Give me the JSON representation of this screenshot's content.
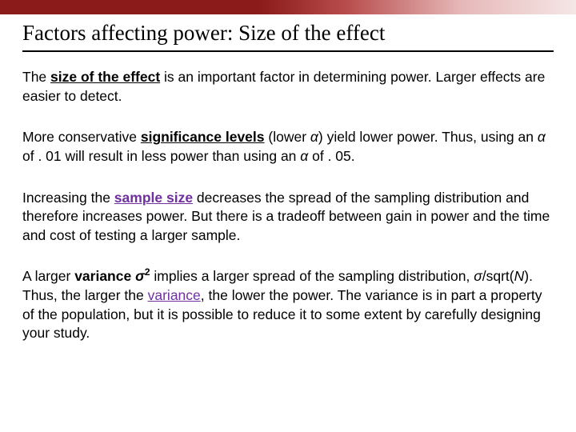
{
  "colors": {
    "bar_start": "#8b1a1a",
    "bar_end": "#f5e6e6",
    "link_color": "#7030a0",
    "text_color": "#000000",
    "background": "#ffffff"
  },
  "typography": {
    "title_family": "Times New Roman",
    "title_size_pt": 27,
    "body_family": "Arial",
    "body_size_pt": 17.5,
    "line_height": 1.35
  },
  "title": "Factors affecting power: Size of the effect",
  "p1": {
    "t1": "The ",
    "bold_u": "size of the effect",
    "t2": " is an important factor in determining power. Larger effects are easier to detect."
  },
  "p2": {
    "t1": "More conservative ",
    "bold_u": "significance levels",
    "t2": " (lower ",
    "alpha1": "α",
    "t3": ") yield lower power. Thus, using an ",
    "alpha2": "α",
    "t4": " of . 01 will result in less power than using an ",
    "alpha3": "α",
    "t5": " of . 05."
  },
  "p3": {
    "t1": "Increasing the ",
    "link": "sample size",
    "t2": " decreases the spread of the sampling distribution and therefore increases power. But there is a tradeoff between gain in power and the time and cost of testing a larger sample."
  },
  "p4": {
    "t1": "A larger ",
    "bold1": "variance ",
    "sigma": "σ",
    "sup": "2",
    "t2": " implies a larger spread of the sampling distribution, ",
    "sigma2": "σ",
    "t3": "/sqrt(",
    "N": "N",
    "t4": "). Thus, the larger the ",
    "link": "variance",
    "t5": ", the lower the power. The variance is in part a property of the population, but it is possible to reduce it to some extent by carefully designing your study."
  }
}
